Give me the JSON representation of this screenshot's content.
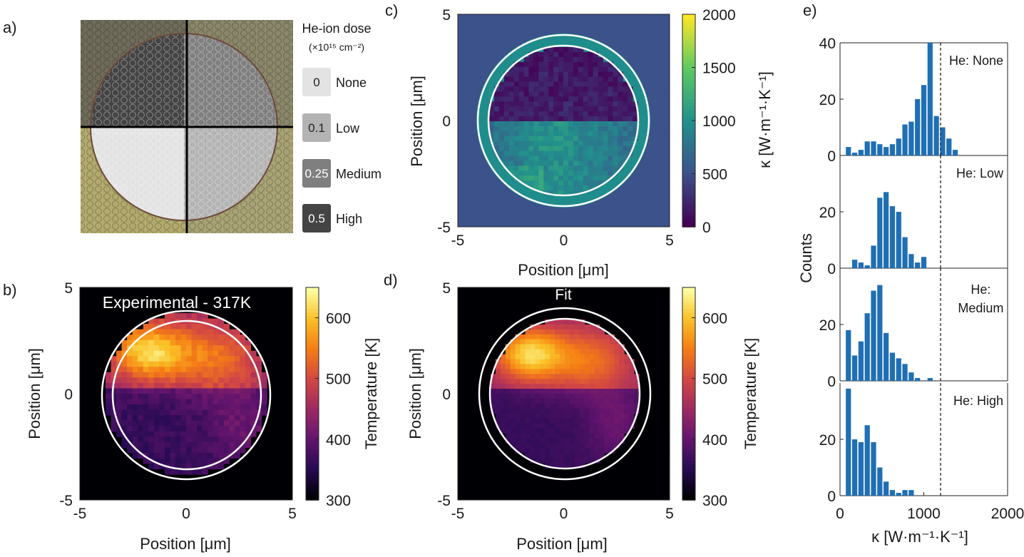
{
  "chart_data": [
    {
      "panel": "a)",
      "type": "other",
      "legend_title": "He-ion dose",
      "legend_unit": "(×10¹⁵ cm⁻²)",
      "dose_entries": [
        {
          "value": "0",
          "label": "None",
          "color": "#e3e3e3",
          "text_color": "#222222"
        },
        {
          "value": "0.1",
          "label": "Low",
          "color": "#b3b3b3",
          "text_color": "#222222"
        },
        {
          "value": "0.25",
          "label": "Medium",
          "color": "#7f7f7f",
          "text_color": "#ffffff"
        },
        {
          "value": "0.5",
          "label": "High",
          "color": "#444444",
          "text_color": "#ffffff"
        }
      ],
      "quadrants": {
        "top_left": "High",
        "top_right": "Medium",
        "bottom_left": "None",
        "bottom_right": "Low"
      },
      "substrate_color": "#b3aa6e"
    },
    {
      "panel": "b)",
      "type": "heatmap",
      "title": "Experimental - 317K",
      "xlabel": "Position [μm]",
      "ylabel": "Position [μm]",
      "xlim": [
        -5,
        5
      ],
      "ylim": [
        -5,
        5
      ],
      "xticks": [
        "-5",
        "0",
        "5"
      ],
      "yticks": [
        "5",
        "0",
        "-5"
      ],
      "colorbar_label": "Temperature [K]",
      "colorbar_range": [
        300,
        650
      ],
      "colorbar_ticks": [
        "600",
        "500",
        "400",
        "300"
      ],
      "colormap": "inferno"
    },
    {
      "panel": "c)",
      "type": "heatmap",
      "xlabel": "Position [μm]",
      "ylabel": "Position [μm]",
      "xlim": [
        -5,
        5
      ],
      "ylim": [
        -5,
        5
      ],
      "xticks": [
        "-5",
        "0",
        "5"
      ],
      "yticks": [
        "5",
        "0",
        "-5"
      ],
      "colorbar_label": "κ  [W·m⁻¹·K⁻¹]",
      "colorbar_range": [
        0,
        2000
      ],
      "colorbar_ticks": [
        "2000",
        "1500",
        "1000",
        "500",
        "0"
      ],
      "colormap": "viridis"
    },
    {
      "panel": "d)",
      "type": "heatmap",
      "title": "Fit",
      "xlabel": "Position [μm]",
      "ylabel": "Position [μm]",
      "xlim": [
        -5,
        5
      ],
      "ylim": [
        -5,
        5
      ],
      "xticks": [
        "-5",
        "0",
        "5"
      ],
      "yticks": [
        "5",
        "0",
        "-5"
      ],
      "colorbar_label": "Temperature [K]",
      "colorbar_range": [
        300,
        650
      ],
      "colorbar_ticks": [
        "600",
        "500",
        "400",
        "300"
      ],
      "colormap": "inferno"
    },
    {
      "panel": "e)",
      "type": "bar",
      "xlabel": "κ  [W·m⁻¹·K⁻¹]",
      "ylabel": "Counts",
      "xlim": [
        0,
        2000
      ],
      "xticks": [
        "0",
        "1000",
        "2000"
      ],
      "bin_width": 75,
      "reference_line_x": 1200,
      "bar_color": "#1f6fb4",
      "subplots": [
        {
          "label": "He: None",
          "ylim": [
            0,
            40
          ],
          "yticks": [
            "40",
            "20",
            "0"
          ],
          "bins": [
            100,
            175,
            250,
            325,
            400,
            475,
            550,
            625,
            700,
            775,
            850,
            925,
            1000,
            1075,
            1150,
            1225,
            1300,
            1375,
            1450,
            1525
          ],
          "counts": [
            3,
            1,
            2,
            5,
            5,
            4,
            3,
            4,
            6,
            11,
            12,
            20,
            25,
            40,
            14,
            10,
            6,
            2,
            0,
            0
          ]
        },
        {
          "label": "He: Low",
          "ylim": [
            0,
            40
          ],
          "yticks": [
            "20",
            "0"
          ],
          "bins": [
            175,
            250,
            325,
            400,
            475,
            550,
            625,
            700,
            775,
            850,
            925,
            1000,
            1075,
            1150,
            1225,
            1300
          ],
          "counts": [
            3,
            2,
            1,
            8,
            25,
            27,
            22,
            20,
            11,
            5,
            2,
            4,
            0,
            0,
            0,
            0
          ]
        },
        {
          "label": "He: Medium",
          "ylim": [
            0,
            40
          ],
          "yticks": [
            "20",
            "0"
          ],
          "bins": [
            100,
            175,
            250,
            325,
            400,
            475,
            550,
            625,
            700,
            775,
            850,
            925,
            1000,
            1075,
            1150
          ],
          "counts": [
            18,
            9,
            14,
            24,
            32,
            34,
            17,
            10,
            8,
            6,
            3,
            1,
            0,
            1,
            0
          ]
        },
        {
          "label": "He: High",
          "ylim": [
            0,
            40
          ],
          "yticks": [
            "20",
            "0"
          ],
          "bins": [
            100,
            175,
            250,
            325,
            400,
            475,
            550,
            625,
            700,
            775,
            850,
            925
          ],
          "counts": [
            38,
            20,
            19,
            25,
            19,
            10,
            5,
            2,
            1,
            2,
            2,
            0
          ]
        }
      ]
    }
  ]
}
